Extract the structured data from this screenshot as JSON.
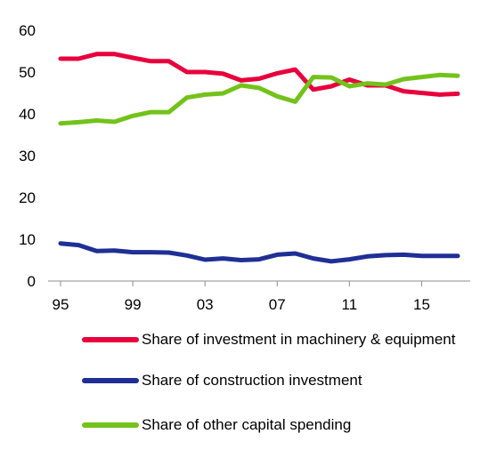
{
  "chart_data": {
    "type": "line",
    "x": [
      1995,
      1996,
      1997,
      1998,
      1999,
      2000,
      2001,
      2002,
      2003,
      2004,
      2005,
      2006,
      2007,
      2008,
      2009,
      2010,
      2011,
      2012,
      2013,
      2014,
      2015,
      2016,
      2017
    ],
    "x_ticks": [
      {
        "value": 1995,
        "label": "95"
      },
      {
        "value": 1999,
        "label": "99"
      },
      {
        "value": 2003,
        "label": "03"
      },
      {
        "value": 2007,
        "label": "07"
      },
      {
        "value": 2011,
        "label": "11"
      },
      {
        "value": 2015,
        "label": "15"
      }
    ],
    "y_ticks": [
      0,
      10,
      20,
      30,
      40,
      50,
      60
    ],
    "ylim": [
      0,
      60
    ],
    "grid": false,
    "legend_position": "bottom",
    "series": [
      {
        "name": "Share of investment in machinery & equipment",
        "color": "#e8003c",
        "values": [
          53.2,
          53.2,
          54.3,
          54.3,
          53.4,
          52.6,
          52.6,
          50.0,
          50.0,
          49.6,
          48.0,
          48.4,
          49.7,
          50.6,
          45.8,
          46.6,
          48.2,
          46.8,
          46.8,
          45.4,
          45.0,
          44.6,
          44.8
        ]
      },
      {
        "name": "Share of construction investment",
        "color": "#1f2f96",
        "values": [
          9.0,
          8.6,
          7.2,
          7.3,
          6.9,
          6.9,
          6.8,
          6.1,
          5.1,
          5.4,
          5.0,
          5.2,
          6.3,
          6.6,
          5.4,
          4.7,
          5.2,
          5.9,
          6.2,
          6.3,
          6.0,
          6.0,
          6.0
        ]
      },
      {
        "name": "Share of other capital spending",
        "color": "#73c21a",
        "values": [
          37.7,
          38.0,
          38.4,
          38.1,
          39.5,
          40.4,
          40.4,
          43.9,
          44.6,
          44.9,
          46.8,
          46.2,
          44.2,
          42.9,
          48.8,
          48.7,
          46.6,
          47.3,
          47.0,
          48.3,
          48.8,
          49.3,
          49.1
        ]
      }
    ]
  }
}
